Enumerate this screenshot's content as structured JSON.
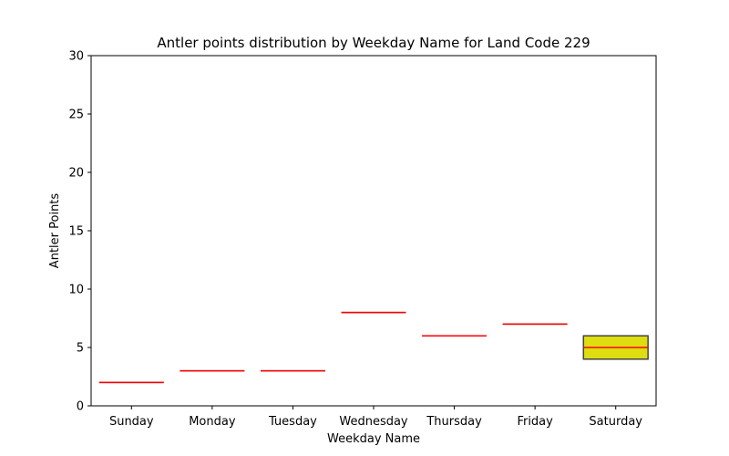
{
  "chart_data": {
    "type": "box",
    "title": "Antler points distribution by Weekday Name for Land Code 229",
    "xlabel": "Weekday Name",
    "ylabel": "Antler Points",
    "ylim": [
      0,
      30
    ],
    "yticks": [
      0,
      5,
      10,
      15,
      20,
      25,
      30
    ],
    "grid": false,
    "categories": [
      "Sunday",
      "Monday",
      "Tuesday",
      "Wednesday",
      "Thursday",
      "Friday",
      "Saturday"
    ],
    "boxes": [
      {
        "category": "Sunday",
        "q1": 2,
        "median": 2,
        "q3": 2
      },
      {
        "category": "Monday",
        "q1": 3,
        "median": 3,
        "q3": 3
      },
      {
        "category": "Tuesday",
        "q1": 3,
        "median": 3,
        "q3": 3
      },
      {
        "category": "Wednesday",
        "q1": 8,
        "median": 8,
        "q3": 8
      },
      {
        "category": "Thursday",
        "q1": 6,
        "median": 6,
        "q3": 6
      },
      {
        "category": "Friday",
        "q1": 7,
        "median": 7,
        "q3": 7
      },
      {
        "category": "Saturday",
        "q1": 4,
        "median": 5,
        "q3": 6
      }
    ],
    "colors": {
      "box_fill": "#dddd11",
      "box_edge": "#444444",
      "median": "#ff0000",
      "axis": "#000000"
    }
  }
}
